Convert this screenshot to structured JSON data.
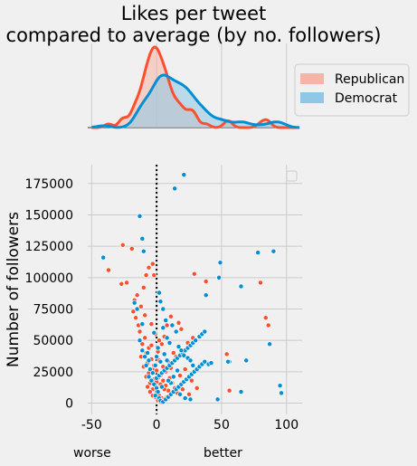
{
  "chart_data": [
    {
      "type": "density",
      "title_lines": [
        "Likes per tweet",
        "compared to average (by no. followers)"
      ],
      "x_range": [
        -50,
        110
      ],
      "series": [
        {
          "name": "Republican",
          "color": "#fc4f30",
          "fill": "#f5b4a8"
        },
        {
          "name": "Democrat",
          "color": "#008fd5",
          "fill": "#8ec8e6"
        }
      ],
      "legend_position": "right"
    },
    {
      "type": "scatter",
      "ylabel": "Number of followers",
      "xticks": [
        -50,
        0,
        50,
        100
      ],
      "xtick_labels": [
        "-50",
        "0",
        "50",
        "100"
      ],
      "yticks": [
        0,
        25000,
        50000,
        75000,
        100000,
        125000,
        150000,
        175000
      ],
      "ytick_labels": [
        "0",
        "25000",
        "50000",
        "75000",
        "100000",
        "125000",
        "150000",
        "175000"
      ],
      "xlim": [
        -53,
        112
      ],
      "ylim": [
        -9000,
        190000
      ],
      "vertical_reference_x": 0,
      "annotations": [
        "worse",
        "better"
      ],
      "grid": true,
      "series": [
        {
          "name": "Republican",
          "color": "#fc4f30",
          "points": [
            [
              -37,
              106000
            ],
            [
              -26,
              126000
            ],
            [
              -23,
              96000
            ],
            [
              -27,
              95000
            ],
            [
              -19,
              123000
            ],
            [
              -17,
              82000
            ],
            [
              -18,
              73000
            ],
            [
              -16,
              68000
            ],
            [
              -14,
              62000
            ],
            [
              -12,
              77000
            ],
            [
              -10,
              92000
            ],
            [
              -8,
              102000
            ],
            [
              -6,
              108000
            ],
            [
              -3,
              111000
            ],
            [
              -2,
              102000
            ],
            [
              -13,
              57000
            ],
            [
              -9,
              52000
            ],
            [
              -11,
              47000
            ],
            [
              -6,
              44000
            ],
            [
              -8,
              40000
            ],
            [
              -12,
              37000
            ],
            [
              -4,
              35000
            ],
            [
              -7,
              32000
            ],
            [
              -10,
              29000
            ],
            [
              -3,
              27000
            ],
            [
              -6,
              24000
            ],
            [
              -8,
              21000
            ],
            [
              -2,
              19000
            ],
            [
              -5,
              16000
            ],
            [
              -1,
              14000
            ],
            [
              -3,
              11000
            ],
            [
              0,
              9000
            ],
            [
              2,
              6000
            ],
            [
              4,
              4000
            ],
            [
              1,
              2000
            ],
            [
              3,
              1000
            ],
            [
              6,
              3000
            ],
            [
              8,
              5000
            ],
            [
              -2,
              30000
            ],
            [
              0,
              26000
            ],
            [
              3,
              22000
            ],
            [
              5,
              18000
            ],
            [
              7,
              14000
            ],
            [
              9,
              10000
            ],
            [
              2,
              34000
            ],
            [
              1,
              41000
            ],
            [
              4,
              47000
            ],
            [
              -1,
              55000
            ],
            [
              13,
              40000
            ],
            [
              15,
              37000
            ],
            [
              6,
              53000
            ],
            [
              8,
              62000
            ],
            [
              11,
              69000
            ],
            [
              17,
              64000
            ],
            [
              19,
              59000
            ],
            [
              24,
              48000
            ],
            [
              28,
              52000
            ],
            [
              -15,
              86000
            ],
            [
              -9,
              70000
            ],
            [
              -4,
              63000
            ],
            [
              5,
              29000
            ],
            [
              7,
              25000
            ],
            [
              10,
              20000
            ],
            [
              12,
              16000
            ],
            [
              14,
              12000
            ],
            [
              16,
              8000
            ],
            [
              -1,
              5000
            ],
            [
              18,
              22000
            ],
            [
              22,
              27000
            ],
            [
              27,
              18000
            ],
            [
              31,
              12000
            ],
            [
              9,
              33000
            ],
            [
              -7,
              13000
            ],
            [
              -5,
              9000
            ],
            [
              -3,
              6000
            ],
            [
              11,
              28000
            ],
            [
              20,
              11000
            ],
            [
              25,
              7000
            ],
            [
              3,
              15000
            ],
            [
              6,
              11000
            ],
            [
              1,
              20000
            ],
            [
              0,
              17000
            ],
            [
              -4,
              46000
            ],
            [
              2,
              50000
            ],
            [
              56,
              10000
            ],
            [
              54,
              39000
            ],
            [
              84,
              68000
            ],
            [
              86,
              62000
            ],
            [
              80,
              96000
            ],
            [
              38,
              97000
            ],
            [
              29,
              103000
            ]
          ]
        },
        {
          "name": "Democrat",
          "color": "#008fd5",
          "points": [
            [
              -41,
              116000
            ],
            [
              -13,
              149000
            ],
            [
              -11,
              131000
            ],
            [
              -10,
              121000
            ],
            [
              -17,
              80000
            ],
            [
              -15,
              75000
            ],
            [
              -11,
              63000
            ],
            [
              -13,
              50000
            ],
            [
              -11,
              42000
            ],
            [
              -9,
              37000
            ],
            [
              -6,
              34000
            ],
            [
              -8,
              30000
            ],
            [
              -5,
              27000
            ],
            [
              -3,
              24000
            ],
            [
              -6,
              21000
            ],
            [
              -4,
              18000
            ],
            [
              -2,
              15000
            ],
            [
              0,
              12000
            ],
            [
              1,
              9000
            ],
            [
              -1,
              6000
            ],
            [
              2,
              4000
            ],
            [
              3,
              2000
            ],
            [
              5,
              1000
            ],
            [
              7,
              3000
            ],
            [
              9,
              5000
            ],
            [
              11,
              7000
            ],
            [
              13,
              9000
            ],
            [
              15,
              11000
            ],
            [
              17,
              13000
            ],
            [
              19,
              15000
            ],
            [
              21,
              17000
            ],
            [
              23,
              19000
            ],
            [
              25,
              21000
            ],
            [
              27,
              23000
            ],
            [
              29,
              25000
            ],
            [
              31,
              27000
            ],
            [
              33,
              29000
            ],
            [
              35,
              31000
            ],
            [
              37,
              33000
            ],
            [
              40,
              31000
            ],
            [
              42,
              32000
            ],
            [
              0,
              20000
            ],
            [
              2,
              22000
            ],
            [
              4,
              24000
            ],
            [
              6,
              26000
            ],
            [
              8,
              28000
            ],
            [
              10,
              30000
            ],
            [
              12,
              32000
            ],
            [
              14,
              34000
            ],
            [
              16,
              36000
            ],
            [
              18,
              38000
            ],
            [
              20,
              40000
            ],
            [
              22,
              42000
            ],
            [
              24,
              44000
            ],
            [
              26,
              46000
            ],
            [
              28,
              48000
            ],
            [
              30,
              50000
            ],
            [
              33,
              53000
            ],
            [
              35,
              55000
            ],
            [
              37,
              57000
            ],
            [
              5,
              60000
            ],
            [
              8,
              52000
            ],
            [
              10,
              48000
            ],
            [
              12,
              62000
            ],
            [
              15,
              57000
            ],
            [
              17,
              45000
            ],
            [
              19,
              42000
            ],
            [
              21,
              38000
            ],
            [
              24,
              36000
            ],
            [
              26,
              34000
            ],
            [
              28,
              30000
            ],
            [
              5,
              75000
            ],
            [
              7,
              66000
            ],
            [
              3,
              81000
            ],
            [
              2,
              88000
            ],
            [
              21,
              182000
            ],
            [
              14,
              171000
            ],
            [
              38,
              86000
            ],
            [
              48,
              100000
            ],
            [
              49,
              112000
            ],
            [
              56,
              33000
            ],
            [
              55,
              33000
            ],
            [
              65,
              93000
            ],
            [
              69,
              34000
            ],
            [
              78,
              120000
            ],
            [
              90,
              121000
            ],
            [
              87,
              47000
            ],
            [
              95,
              14000
            ],
            [
              96,
              8000
            ],
            [
              65,
              9000
            ],
            [
              47,
              3000
            ],
            [
              8,
              34000
            ],
            [
              6,
              39000
            ],
            [
              11,
              16000
            ],
            [
              13,
              21000
            ],
            [
              1,
              44000
            ],
            [
              -2,
              56000
            ],
            [
              -7,
              40000
            ],
            [
              9,
              18000
            ],
            [
              4,
              13000
            ],
            [
              -1,
              30000
            ],
            [
              3,
              33000
            ],
            [
              0,
              37000
            ],
            [
              18,
              7000
            ],
            [
              22,
              4000
            ],
            [
              26,
              3000
            ],
            [
              16,
              26000
            ]
          ]
        }
      ],
      "legend_position": "upper right, empty"
    }
  ]
}
